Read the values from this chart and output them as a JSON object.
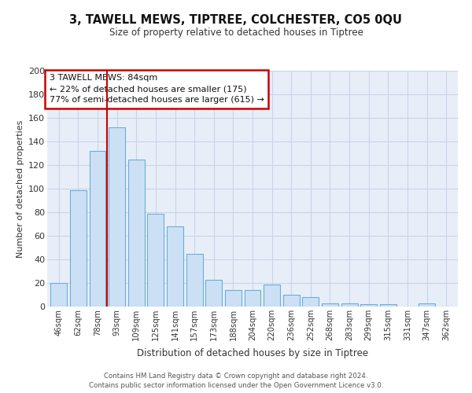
{
  "title1": "3, TAWELL MEWS, TIPTREE, COLCHESTER, CO5 0QU",
  "title2": "Size of property relative to detached houses in Tiptree",
  "xlabel": "Distribution of detached houses by size in Tiptree",
  "ylabel": "Number of detached properties",
  "categories": [
    "46sqm",
    "62sqm",
    "78sqm",
    "93sqm",
    "109sqm",
    "125sqm",
    "141sqm",
    "157sqm",
    "173sqm",
    "188sqm",
    "204sqm",
    "220sqm",
    "236sqm",
    "252sqm",
    "268sqm",
    "283sqm",
    "299sqm",
    "315sqm",
    "331sqm",
    "347sqm",
    "362sqm"
  ],
  "values": [
    20,
    99,
    132,
    152,
    125,
    79,
    68,
    45,
    23,
    14,
    14,
    19,
    10,
    8,
    3,
    3,
    2,
    2,
    0,
    3,
    0
  ],
  "bar_color": "#cce0f5",
  "bar_edge_color": "#6aaed6",
  "vline_x": 2.5,
  "vline_color": "#cc0000",
  "grid_color": "#c8d4e8",
  "background_color": "#e8eef8",
  "annotation_label": "3 TAWELL MEWS: 84sqm",
  "annotation_line1": "← 22% of detached houses are smaller (175)",
  "annotation_line2": "77% of semi-detached houses are larger (615) →",
  "annotation_box_facecolor": "#ffffff",
  "annotation_box_edgecolor": "#cc0000",
  "footer": "Contains HM Land Registry data © Crown copyright and database right 2024.\nContains public sector information licensed under the Open Government Licence v3.0.",
  "ylim": [
    0,
    200
  ],
  "yticks": [
    0,
    20,
    40,
    60,
    80,
    100,
    120,
    140,
    160,
    180,
    200
  ]
}
